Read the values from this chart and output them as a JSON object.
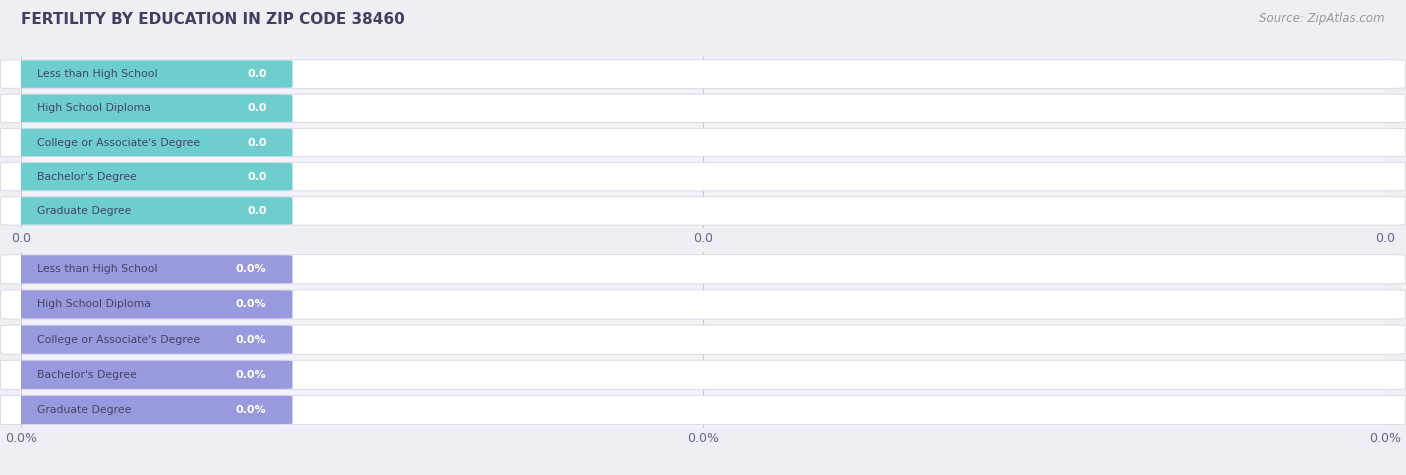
{
  "title": "FERTILITY BY EDUCATION IN ZIP CODE 38460",
  "source_text": "Source: ZipAtlas.com",
  "categories": [
    "Less than High School",
    "High School Diploma",
    "College or Associate's Degree",
    "Bachelor's Degree",
    "Graduate Degree"
  ],
  "values_top": [
    0.0,
    0.0,
    0.0,
    0.0,
    0.0
  ],
  "values_bottom": [
    0.0,
    0.0,
    0.0,
    0.0,
    0.0
  ],
  "bar_color_top": "#6ecece",
  "bar_color_bottom": "#9999dd",
  "tick_label_top": [
    "0.0",
    "0.0",
    "0.0"
  ],
  "tick_label_bottom": [
    "0.0%",
    "0.0%",
    "0.0%"
  ],
  "background_color": "#eeeef5",
  "plot_bg_color": "#f2f2f8",
  "row_bg_color": "#ffffff",
  "row_border_color": "#d0d0e0",
  "grid_color": "#c8c8d8",
  "title_color": "#404060",
  "source_color": "#999999",
  "label_text_color": "#444466",
  "value_text_color_top": "#5ababa",
  "value_text_color_bottom": "#8888cc"
}
